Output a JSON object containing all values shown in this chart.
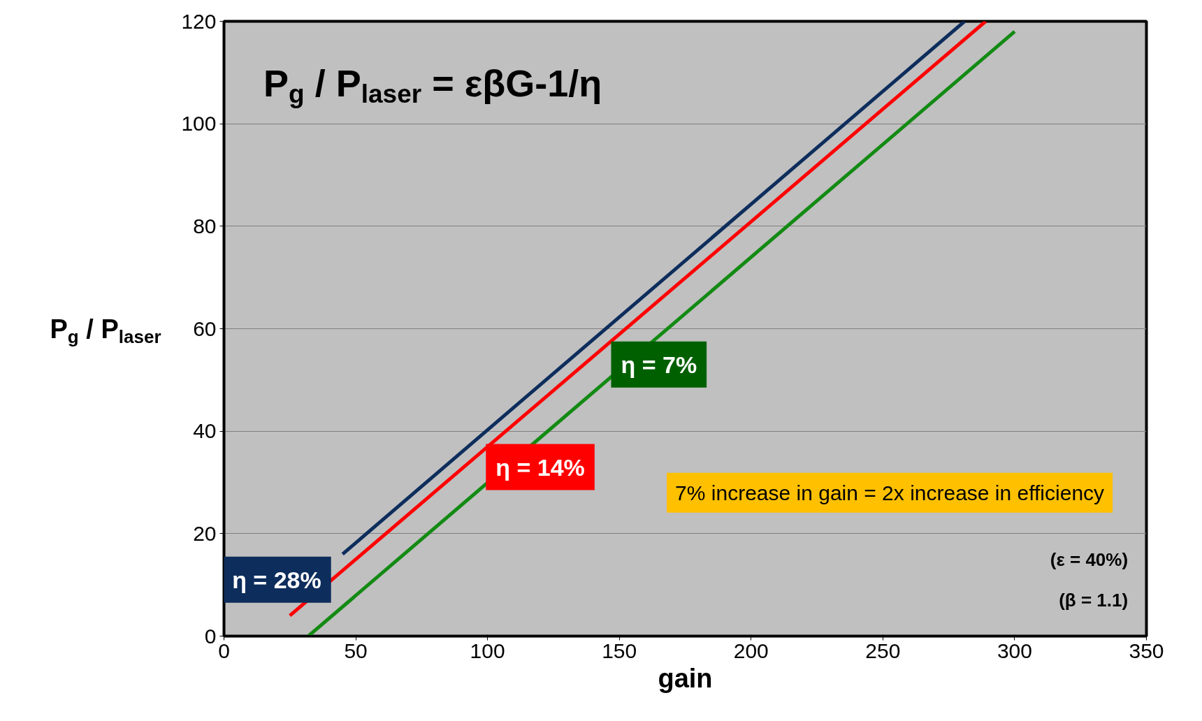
{
  "chart_data": {
    "type": "line",
    "xlabel": "gain",
    "ylabel": "P$_{g}$ / P$_{laser}$",
    "xlim": [
      0,
      350
    ],
    "xticks": [
      0,
      50,
      100,
      150,
      200,
      250,
      300,
      350
    ],
    "ylim": [
      0,
      120
    ],
    "yticks": [
      0,
      20,
      40,
      60,
      80,
      100,
      120
    ],
    "grid": "y",
    "series": [
      {
        "name": "η = 28%",
        "color": "#0d2d5c",
        "x": [
          45,
          281
        ],
        "values": [
          16,
          120
        ]
      },
      {
        "name": "η = 14%",
        "color": "#ff0000",
        "x": [
          25,
          289
        ],
        "values": [
          4,
          120
        ]
      },
      {
        "name": "η = 7%",
        "color": "#138a13",
        "x": [
          32,
          300
        ],
        "values": [
          0,
          118
        ]
      }
    ],
    "annotations": [
      "P$_{g}$ / P$_{laser}$ = εβG-1/η",
      "7% increase in gain = 2x increase in efficiency",
      "(ε = 40%)",
      "(β = 1.1)"
    ]
  }
}
